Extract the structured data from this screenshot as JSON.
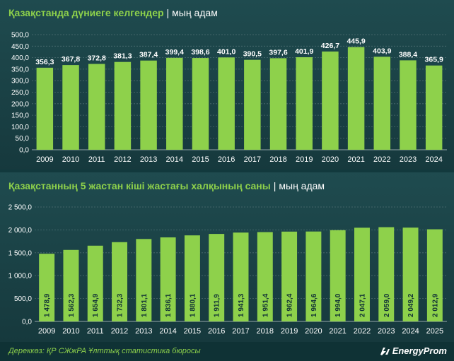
{
  "charts": {
    "births": {
      "title_main": "Қазақстанда дүниеге келгендер",
      "title_unit": "мың адам",
      "separator": "|"
    },
    "children": {
      "title_main": "Қазақстанның 5 жастан кіші жастағы халқының саны",
      "title_unit": "мың адам",
      "separator": "|"
    }
  },
  "footer": {
    "source": "Дереккөз: ҚР СЖжРА Ұлттық статистика бюросы",
    "brand": "EnergyProm",
    "brand_icon": "energyprom-logo-icon"
  },
  "colors": {
    "bar": "#8ed14b",
    "title_accent": "#8ed14b",
    "text": "#ffffff",
    "background": "#1d4649"
  },
  "chart_data": [
    {
      "type": "bar",
      "title": "Қазақстанда дүниеге келгендер",
      "ylabel": "мың адам",
      "categories": [
        "2009",
        "2010",
        "2011",
        "2012",
        "2013",
        "2014",
        "2015",
        "2016",
        "2017",
        "2018",
        "2019",
        "2020",
        "2021",
        "2022",
        "2023",
        "2024"
      ],
      "values": [
        356.3,
        367.8,
        372.8,
        381.3,
        387.4,
        399.4,
        398.6,
        401.0,
        390.5,
        397.6,
        401.9,
        426.7,
        445.9,
        403.9,
        388.4,
        365.9
      ],
      "labels": [
        "356,3",
        "367,8",
        "372,8",
        "381,3",
        "387,4",
        "399,4",
        "398,6",
        "401,0",
        "390,5",
        "397,6",
        "401,9",
        "426,7",
        "445,9",
        "403,9",
        "388,4",
        "365,9"
      ],
      "ylim": [
        0,
        500
      ],
      "yticks": [
        "0,0",
        "50,0",
        "100,0",
        "150,0",
        "200,0",
        "250,0",
        "300,0",
        "350,0",
        "400,0",
        "450,0",
        "500,0"
      ],
      "grid": true,
      "data_label_position": "above"
    },
    {
      "type": "bar",
      "title": "Қазақстанның 5 жастан кіші жастағы халқының саны",
      "ylabel": "мың адам",
      "categories": [
        "2009",
        "2010",
        "2011",
        "2012",
        "2013",
        "2014",
        "2015",
        "2016",
        "2017",
        "2018",
        "2019",
        "2020",
        "2021",
        "2022",
        "2023",
        "2024",
        "2025"
      ],
      "values": [
        1478.9,
        1562.3,
        1654.9,
        1732.3,
        1801.1,
        1836.1,
        1880.1,
        1911.9,
        1941.3,
        1951.4,
        1962.4,
        1964.6,
        1994.0,
        2047.1,
        2059.0,
        2049.2,
        2012.9
      ],
      "labels": [
        "1 478,9",
        "1 562,3",
        "1 654,9",
        "1 732,3",
        "1 801,1",
        "1 836,1",
        "1 880,1",
        "1 911,9",
        "1 941,3",
        "1 951,4",
        "1 962,4",
        "1 964,6",
        "1 994,0",
        "2 047,1",
        "2 059,0",
        "2 049,2",
        "2 012,9"
      ],
      "ylim": [
        0,
        2500
      ],
      "yticks": [
        "0,0",
        "500,0",
        "1 000,0",
        "1 500,0",
        "2 000,0",
        "2 500,0"
      ],
      "grid": true,
      "data_label_position": "inside-vertical"
    }
  ]
}
